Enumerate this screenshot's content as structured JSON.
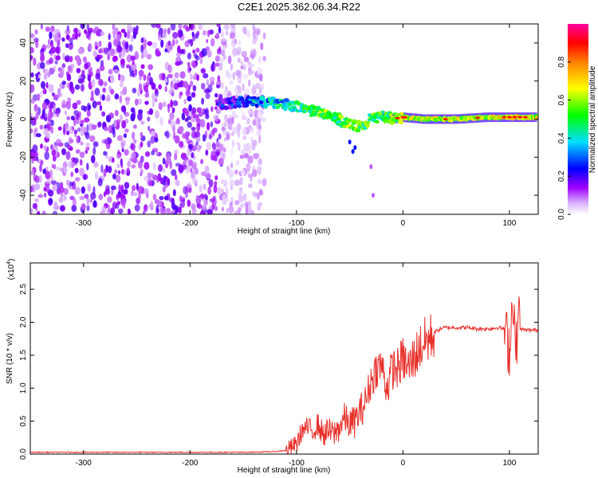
{
  "page": {
    "title": "C2E1.2025.362.06.34.R22"
  },
  "chart_data": [
    {
      "type": "heatmap",
      "xlabel": "Height of straight line (km)",
      "ylabel": "Frequency (Hz)",
      "xlim": [
        -350,
        127
      ],
      "ylim": [
        -50,
        50
      ],
      "xticks": [
        -300,
        -200,
        -100,
        0,
        100
      ],
      "xtick_labels": [
        "-300",
        "-200",
        "-100",
        "0",
        "100"
      ],
      "yticks": [
        -40,
        -20,
        0,
        20,
        40
      ],
      "ytick_labels": [
        "-40",
        "-20",
        "0",
        "20",
        "40"
      ],
      "colorbar": {
        "label": "Normalized spectral amplitude",
        "range": [
          0,
          1
        ],
        "ticks": [
          0.0,
          0.2,
          0.4,
          0.6,
          0.8
        ],
        "tick_labels": [
          "0.0",
          "0.2",
          "0.4",
          "0.6",
          "0.8"
        ],
        "colors": [
          "#ffffff",
          "#a000ff",
          "#0000ff",
          "#00dfff",
          "#00ff00",
          "#ffff00",
          "#ff8000",
          "#ff0000",
          "#ff00a0"
        ]
      },
      "noise_region": {
        "x_range": [
          -350,
          -150
        ],
        "amplitude": [
          0.05,
          0.2
        ]
      },
      "signal_trace": {
        "x": [
          -175,
          -150,
          -130,
          -110,
          -95,
          -85,
          -70,
          -60,
          -50,
          -40,
          -30,
          -20,
          -10,
          0,
          20,
          50,
          80,
          100,
          127
        ],
        "frequency": [
          8,
          9,
          9,
          8,
          6,
          4,
          2,
          0,
          -3,
          -4,
          0,
          2,
          0,
          1,
          0,
          0,
          1,
          1,
          1
        ],
        "amplitude": [
          0.15,
          0.25,
          0.35,
          0.4,
          0.45,
          0.5,
          0.55,
          0.5,
          0.55,
          0.5,
          0.5,
          0.5,
          0.55,
          0.6,
          0.6,
          0.6,
          0.6,
          0.7,
          0.6
        ]
      }
    },
    {
      "type": "line",
      "xlabel": "Height of straight line (km)",
      "ylabel": "SNR (10 * v/v)",
      "y_multiplier": "(x10",
      "y_multiplier_exponent": "4",
      "y_multiplier_close": ")",
      "xlim": [
        -350,
        127
      ],
      "ylim": [
        0,
        2.9
      ],
      "xticks": [
        -300,
        -200,
        -100,
        0,
        100
      ],
      "xtick_labels": [
        "-300",
        "-200",
        "-100",
        "0",
        "100"
      ],
      "yticks": [
        0,
        0.5,
        1,
        1.5,
        2,
        2.5
      ],
      "ytick_labels": [
        "0.0",
        "0.5",
        "1.0",
        "1.5",
        "2.0",
        "2.5"
      ],
      "color": "#e8302a",
      "series": [
        {
          "x": [
            -350,
            -300,
            -250,
            -200,
            -150,
            -120,
            -110,
            -100,
            -95,
            -90,
            -85,
            -80,
            -75,
            -70,
            -65,
            -60,
            -55,
            -50,
            -45,
            -40,
            -35,
            -30,
            -25,
            -20,
            -15,
            -10,
            -5,
            0,
            5,
            10,
            15,
            20,
            25,
            30,
            35,
            40,
            50,
            60,
            70,
            80,
            90,
            95,
            100,
            102,
            104,
            106,
            108,
            110,
            115,
            127
          ],
          "y": [
            0.02,
            0.02,
            0.02,
            0.02,
            0.02,
            0.03,
            0.05,
            0.15,
            0.35,
            0.4,
            0.35,
            0.45,
            0.3,
            0.35,
            0.3,
            0.4,
            0.55,
            0.45,
            0.5,
            0.65,
            0.8,
            1.1,
            1.3,
            1.35,
            1.0,
            1.3,
            1.3,
            1.45,
            1.3,
            1.45,
            1.6,
            1.7,
            1.75,
            1.85,
            1.9,
            1.92,
            1.92,
            1.92,
            1.9,
            1.9,
            1.92,
            1.9,
            1.6,
            2.1,
            2.4,
            1.4,
            2.2,
            1.9,
            1.88,
            1.88
          ]
        }
      ]
    }
  ]
}
